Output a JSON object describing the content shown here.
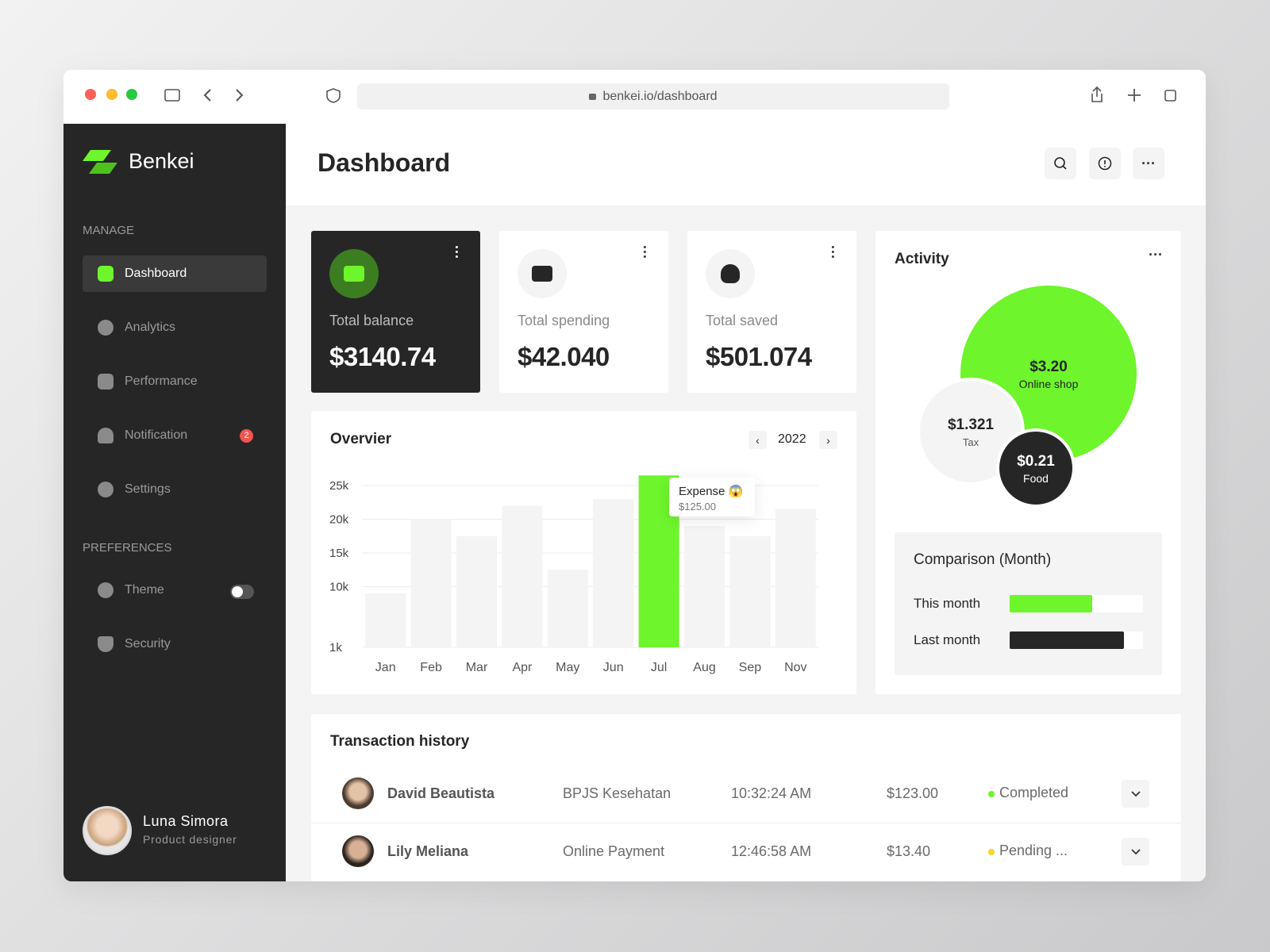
{
  "browser": {
    "url": "benkei.io/dashboard"
  },
  "sidebar": {
    "brand": "Benkei",
    "sections": [
      {
        "title": "MANAGE",
        "items": [
          "Dashboard",
          "Analytics",
          "Performance",
          "Notification",
          "Settings"
        ]
      },
      {
        "title": "PREFERENCES",
        "items": [
          "Theme",
          "Security"
        ]
      }
    ],
    "notification_badge": "2",
    "user": {
      "name": "Luna Simora",
      "role": "Product designer"
    }
  },
  "header": {
    "title": "Dashboard"
  },
  "cards": [
    {
      "label": "Total balance",
      "value": "$3140.74"
    },
    {
      "label": "Total spending",
      "value": "$42.040"
    },
    {
      "label": "Total saved",
      "value": "$501.074"
    }
  ],
  "chart_data": {
    "type": "bar",
    "title": "Overvier",
    "year": "2022",
    "categories": [
      "Jan",
      "Feb",
      "Mar",
      "Apr",
      "May",
      "Jun",
      "Jul",
      "Aug",
      "Sep",
      "Nov"
    ],
    "values": [
      9000,
      20000,
      17500,
      22000,
      12500,
      23000,
      26500,
      19000,
      17500,
      21500
    ],
    "colors": [
      "#f4f4f4",
      "#f4f4f4",
      "#f4f4f4",
      "#f4f4f4",
      "#f4f4f4",
      "#f4f4f4",
      "#6ef52c",
      "#f4f4f4",
      "#f4f4f4",
      "#f4f4f4"
    ],
    "ylim": [
      1000,
      27000
    ],
    "yticks": [
      {
        "value": 1000,
        "label": "1k"
      },
      {
        "value": 10000,
        "label": "10k"
      },
      {
        "value": 15000,
        "label": "15k"
      },
      {
        "value": 20000,
        "label": "20k"
      },
      {
        "value": 25000,
        "label": "25k"
      }
    ],
    "grid": true,
    "tooltip": {
      "title": "Expense 😱",
      "text": "$125.00"
    }
  },
  "activity": {
    "title": "Activity",
    "bubbles": [
      {
        "value": "$3.20",
        "label": "Online shop"
      },
      {
        "value": "$1.321",
        "label": "Tax"
      },
      {
        "value": "$0.21",
        "label": "Food"
      }
    ]
  },
  "comparison": {
    "title": "Comparison (Month)",
    "xlim": [
      0,
      100
    ],
    "rows": [
      {
        "label": "This month",
        "value": 62,
        "color": "#6ef52c"
      },
      {
        "label": "Last month",
        "value": 86,
        "color": "#262626"
      }
    ]
  },
  "transactions": {
    "title": "Transaction history",
    "rows": [
      {
        "name": "David Beautista",
        "description": "BPJS Kesehatan",
        "time": "10:32:24 AM",
        "amount": "$123.00",
        "status": "Completed"
      },
      {
        "name": "Lily Meliana",
        "description": "Online Payment",
        "time": "12:46:58 AM",
        "amount": "$13.40",
        "status": "Pending ..."
      }
    ]
  }
}
